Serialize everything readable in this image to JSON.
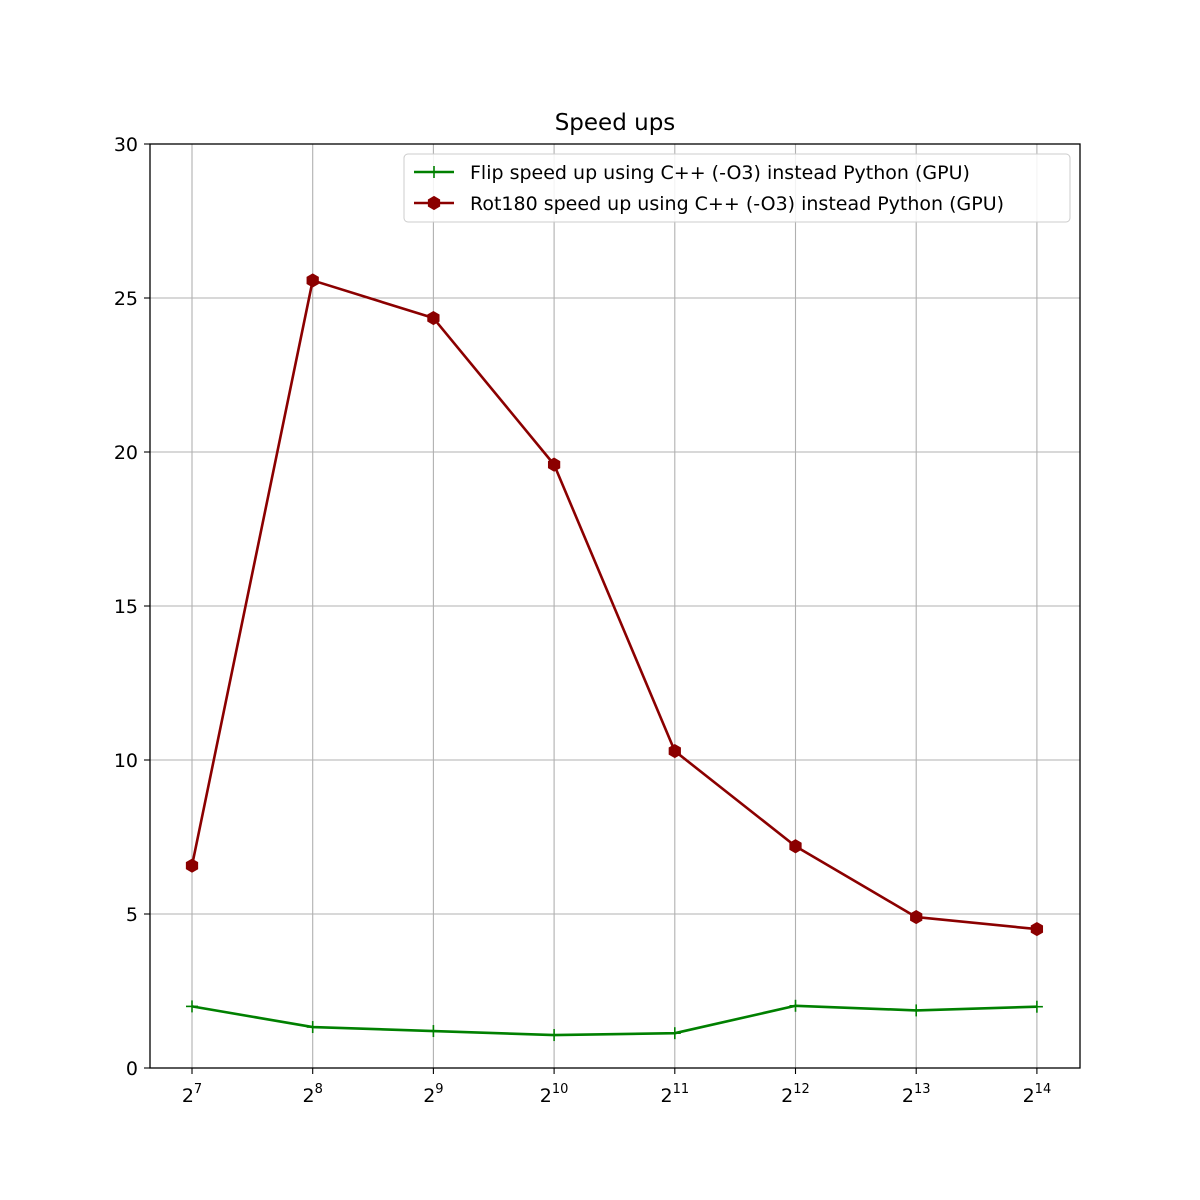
{
  "chart_data": {
    "type": "line",
    "title": "Speed ups",
    "xlabel": "",
    "ylabel": "",
    "x_scale": "log2",
    "x": [
      128,
      256,
      512,
      1024,
      2048,
      4096,
      8192,
      16384
    ],
    "x_tick_labels": [
      {
        "base": "2",
        "exp": "7"
      },
      {
        "base": "2",
        "exp": "8"
      },
      {
        "base": "2",
        "exp": "9"
      },
      {
        "base": "2",
        "exp": "10"
      },
      {
        "base": "2",
        "exp": "11"
      },
      {
        "base": "2",
        "exp": "12"
      },
      {
        "base": "2",
        "exp": "13"
      },
      {
        "base": "2",
        "exp": "14"
      }
    ],
    "ylim": [
      0,
      30
    ],
    "y_ticks": [
      0,
      5,
      10,
      15,
      20,
      25,
      30
    ],
    "grid": true,
    "legend_position": "top-right",
    "series": [
      {
        "name": "Flip speed up using C++ (-O3)  instead Python (GPU)",
        "color": "#008000",
        "marker": "plus",
        "values": [
          2.0,
          1.33,
          1.2,
          1.07,
          1.13,
          2.02,
          1.87,
          1.99
        ]
      },
      {
        "name": "Rot180 speed up using C++ (-O3)  instead Python (GPU)",
        "color": "#8b0000",
        "marker": "hexagon",
        "values": [
          6.57,
          25.57,
          24.35,
          19.59,
          10.29,
          7.2,
          4.9,
          4.51
        ]
      }
    ]
  }
}
